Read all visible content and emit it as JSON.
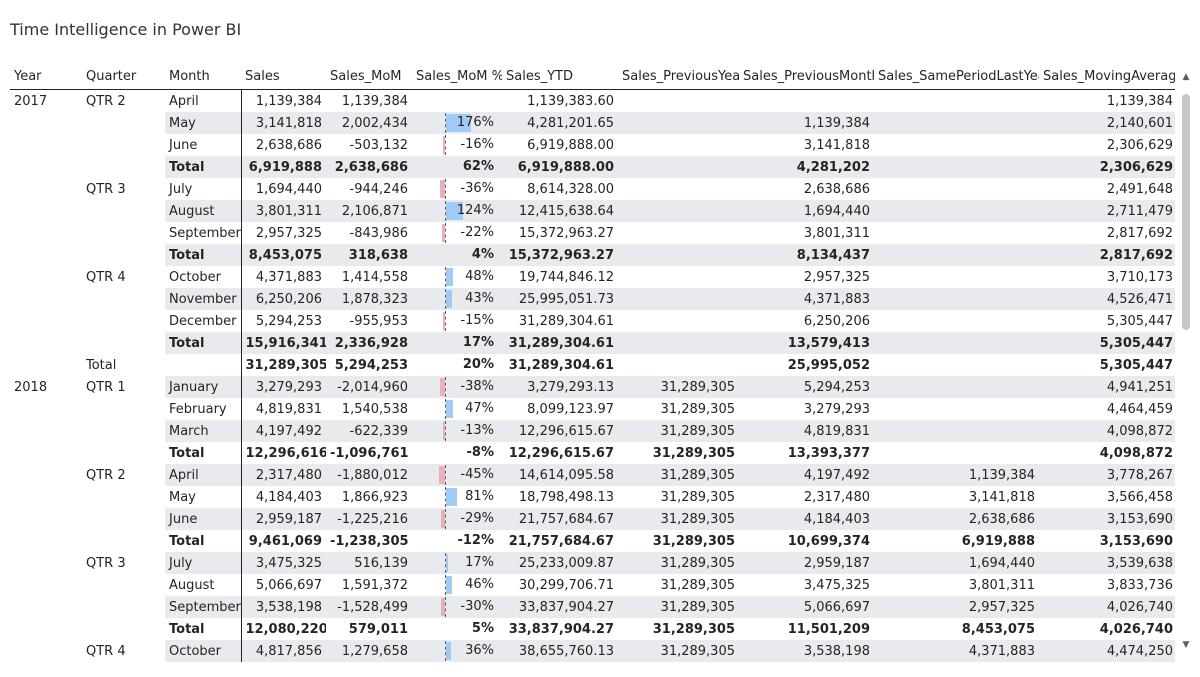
{
  "report": {
    "title": "Time Intelligence in Power BI"
  },
  "colors": {
    "positive_bar": "#a0cbf6",
    "negative_bar": "#e9b0b5",
    "row_shade": "#e9eaee"
  },
  "matrix": {
    "columns": [
      "Year",
      "Quarter",
      "Month",
      "Sales",
      "Sales_MoM",
      "Sales_MoM %",
      "Sales_YTD",
      "Sales_PreviousYear",
      "Sales_PreviousMonth",
      "Sales_SamePeriodLastYear",
      "Sales_MovingAverage"
    ],
    "rows": [
      {
        "year": "2017",
        "quarter": "QTR 2",
        "month": "April",
        "sales": "1,139,384",
        "mom": "1,139,384",
        "mom_pct": "",
        "mom_pct_value": null,
        "ytd": "1,139,383.60",
        "prev_year": "",
        "prev_month": "",
        "same_period_ly": "",
        "moving_avg": "1,139,384"
      },
      {
        "year": "",
        "quarter": "",
        "month": "May",
        "sales": "3,141,818",
        "mom": "2,002,434",
        "mom_pct": "176%",
        "mom_pct_value": 1.76,
        "ytd": "4,281,201.65",
        "prev_year": "",
        "prev_month": "1,139,384",
        "same_period_ly": "",
        "moving_avg": "2,140,601"
      },
      {
        "year": "",
        "quarter": "",
        "month": "June",
        "sales": "2,638,686",
        "mom": "-503,132",
        "mom_pct": "-16%",
        "mom_pct_value": -0.16,
        "ytd": "6,919,888.00",
        "prev_year": "",
        "prev_month": "3,141,818",
        "same_period_ly": "",
        "moving_avg": "2,306,629"
      },
      {
        "type": "total",
        "year": "",
        "quarter": "",
        "month": "Total",
        "sales": "6,919,888",
        "mom": "2,638,686",
        "mom_pct": "62%",
        "mom_pct_value": null,
        "ytd": "6,919,888.00",
        "prev_year": "",
        "prev_month": "4,281,202",
        "same_period_ly": "",
        "moving_avg": "2,306,629"
      },
      {
        "year": "",
        "quarter": "QTR 3",
        "month": "July",
        "sales": "1,694,440",
        "mom": "-944,246",
        "mom_pct": "-36%",
        "mom_pct_value": -0.36,
        "ytd": "8,614,328.00",
        "prev_year": "",
        "prev_month": "2,638,686",
        "same_period_ly": "",
        "moving_avg": "2,491,648"
      },
      {
        "year": "",
        "quarter": "",
        "month": "August",
        "sales": "3,801,311",
        "mom": "2,106,871",
        "mom_pct": "124%",
        "mom_pct_value": 1.24,
        "ytd": "12,415,638.64",
        "prev_year": "",
        "prev_month": "1,694,440",
        "same_period_ly": "",
        "moving_avg": "2,711,479"
      },
      {
        "year": "",
        "quarter": "",
        "month": "September",
        "sales": "2,957,325",
        "mom": "-843,986",
        "mom_pct": "-22%",
        "mom_pct_value": -0.22,
        "ytd": "15,372,963.27",
        "prev_year": "",
        "prev_month": "3,801,311",
        "same_period_ly": "",
        "moving_avg": "2,817,692"
      },
      {
        "type": "total",
        "year": "",
        "quarter": "",
        "month": "Total",
        "sales": "8,453,075",
        "mom": "318,638",
        "mom_pct": "4%",
        "mom_pct_value": null,
        "ytd": "15,372,963.27",
        "prev_year": "",
        "prev_month": "8,134,437",
        "same_period_ly": "",
        "moving_avg": "2,817,692"
      },
      {
        "year": "",
        "quarter": "QTR 4",
        "month": "October",
        "sales": "4,371,883",
        "mom": "1,414,558",
        "mom_pct": "48%",
        "mom_pct_value": 0.48,
        "ytd": "19,744,846.12",
        "prev_year": "",
        "prev_month": "2,957,325",
        "same_period_ly": "",
        "moving_avg": "3,710,173"
      },
      {
        "year": "",
        "quarter": "",
        "month": "November",
        "sales": "6,250,206",
        "mom": "1,878,323",
        "mom_pct": "43%",
        "mom_pct_value": 0.43,
        "ytd": "25,995,051.73",
        "prev_year": "",
        "prev_month": "4,371,883",
        "same_period_ly": "",
        "moving_avg": "4,526,471"
      },
      {
        "year": "",
        "quarter": "",
        "month": "December",
        "sales": "5,294,253",
        "mom": "-955,953",
        "mom_pct": "-15%",
        "mom_pct_value": -0.15,
        "ytd": "31,289,304.61",
        "prev_year": "",
        "prev_month": "6,250,206",
        "same_period_ly": "",
        "moving_avg": "5,305,447"
      },
      {
        "type": "total",
        "year": "",
        "quarter": "",
        "month": "Total",
        "sales": "15,916,341",
        "mom": "2,336,928",
        "mom_pct": "17%",
        "mom_pct_value": null,
        "ytd": "31,289,304.61",
        "prev_year": "",
        "prev_month": "13,579,413",
        "same_period_ly": "",
        "moving_avg": "5,305,447"
      },
      {
        "type": "yeartotal",
        "year": "",
        "quarter": "Total",
        "month": "",
        "sales": "31,289,305",
        "mom": "5,294,253",
        "mom_pct": "20%",
        "mom_pct_value": null,
        "ytd": "31,289,304.61",
        "prev_year": "",
        "prev_month": "25,995,052",
        "same_period_ly": "",
        "moving_avg": "5,305,447"
      },
      {
        "year": "2018",
        "quarter": "QTR 1",
        "month": "January",
        "sales": "3,279,293",
        "mom": "-2,014,960",
        "mom_pct": "-38%",
        "mom_pct_value": -0.38,
        "ytd": "3,279,293.13",
        "prev_year": "31,289,305",
        "prev_month": "5,294,253",
        "same_period_ly": "",
        "moving_avg": "4,941,251"
      },
      {
        "year": "",
        "quarter": "",
        "month": "February",
        "sales": "4,819,831",
        "mom": "1,540,538",
        "mom_pct": "47%",
        "mom_pct_value": 0.47,
        "ytd": "8,099,123.97",
        "prev_year": "31,289,305",
        "prev_month": "3,279,293",
        "same_period_ly": "",
        "moving_avg": "4,464,459"
      },
      {
        "year": "",
        "quarter": "",
        "month": "March",
        "sales": "4,197,492",
        "mom": "-622,339",
        "mom_pct": "-13%",
        "mom_pct_value": -0.13,
        "ytd": "12,296,615.67",
        "prev_year": "31,289,305",
        "prev_month": "4,819,831",
        "same_period_ly": "",
        "moving_avg": "4,098,872"
      },
      {
        "type": "total",
        "year": "",
        "quarter": "",
        "month": "Total",
        "sales": "12,296,616",
        "mom": "-1,096,761",
        "mom_pct": "-8%",
        "mom_pct_value": null,
        "ytd": "12,296,615.67",
        "prev_year": "31,289,305",
        "prev_month": "13,393,377",
        "same_period_ly": "",
        "moving_avg": "4,098,872"
      },
      {
        "year": "",
        "quarter": "QTR 2",
        "month": "April",
        "sales": "2,317,480",
        "mom": "-1,880,012",
        "mom_pct": "-45%",
        "mom_pct_value": -0.45,
        "ytd": "14,614,095.58",
        "prev_year": "31,289,305",
        "prev_month": "4,197,492",
        "same_period_ly": "1,139,384",
        "moving_avg": "3,778,267"
      },
      {
        "year": "",
        "quarter": "",
        "month": "May",
        "sales": "4,184,403",
        "mom": "1,866,923",
        "mom_pct": "81%",
        "mom_pct_value": 0.81,
        "ytd": "18,798,498.13",
        "prev_year": "31,289,305",
        "prev_month": "2,317,480",
        "same_period_ly": "3,141,818",
        "moving_avg": "3,566,458"
      },
      {
        "year": "",
        "quarter": "",
        "month": "June",
        "sales": "2,959,187",
        "mom": "-1,225,216",
        "mom_pct": "-29%",
        "mom_pct_value": -0.29,
        "ytd": "21,757,684.67",
        "prev_year": "31,289,305",
        "prev_month": "4,184,403",
        "same_period_ly": "2,638,686",
        "moving_avg": "3,153,690"
      },
      {
        "type": "total",
        "year": "",
        "quarter": "",
        "month": "Total",
        "sales": "9,461,069",
        "mom": "-1,238,305",
        "mom_pct": "-12%",
        "mom_pct_value": null,
        "ytd": "21,757,684.67",
        "prev_year": "31,289,305",
        "prev_month": "10,699,374",
        "same_period_ly": "6,919,888",
        "moving_avg": "3,153,690"
      },
      {
        "year": "",
        "quarter": "QTR 3",
        "month": "July",
        "sales": "3,475,325",
        "mom": "516,139",
        "mom_pct": "17%",
        "mom_pct_value": 0.17,
        "ytd": "25,233,009.87",
        "prev_year": "31,289,305",
        "prev_month": "2,959,187",
        "same_period_ly": "1,694,440",
        "moving_avg": "3,539,638"
      },
      {
        "year": "",
        "quarter": "",
        "month": "August",
        "sales": "5,066,697",
        "mom": "1,591,372",
        "mom_pct": "46%",
        "mom_pct_value": 0.46,
        "ytd": "30,299,706.71",
        "prev_year": "31,289,305",
        "prev_month": "3,475,325",
        "same_period_ly": "3,801,311",
        "moving_avg": "3,833,736"
      },
      {
        "year": "",
        "quarter": "",
        "month": "September",
        "sales": "3,538,198",
        "mom": "-1,528,499",
        "mom_pct": "-30%",
        "mom_pct_value": -0.3,
        "ytd": "33,837,904.27",
        "prev_year": "31,289,305",
        "prev_month": "5,066,697",
        "same_period_ly": "2,957,325",
        "moving_avg": "4,026,740"
      },
      {
        "type": "total",
        "year": "",
        "quarter": "",
        "month": "Total",
        "sales": "12,080,220",
        "mom": "579,011",
        "mom_pct": "5%",
        "mom_pct_value": null,
        "ytd": "33,837,904.27",
        "prev_year": "31,289,305",
        "prev_month": "11,501,209",
        "same_period_ly": "8,453,075",
        "moving_avg": "4,026,740"
      },
      {
        "year": "",
        "quarter": "QTR 4",
        "month": "October",
        "sales": "4,817,856",
        "mom": "1,279,658",
        "mom_pct": "36%",
        "mom_pct_value": 0.36,
        "ytd": "38,655,760.13",
        "prev_year": "31,289,305",
        "prev_month": "3,538,198",
        "same_period_ly": "4,371,883",
        "moving_avg": "4,474,250"
      }
    ]
  }
}
